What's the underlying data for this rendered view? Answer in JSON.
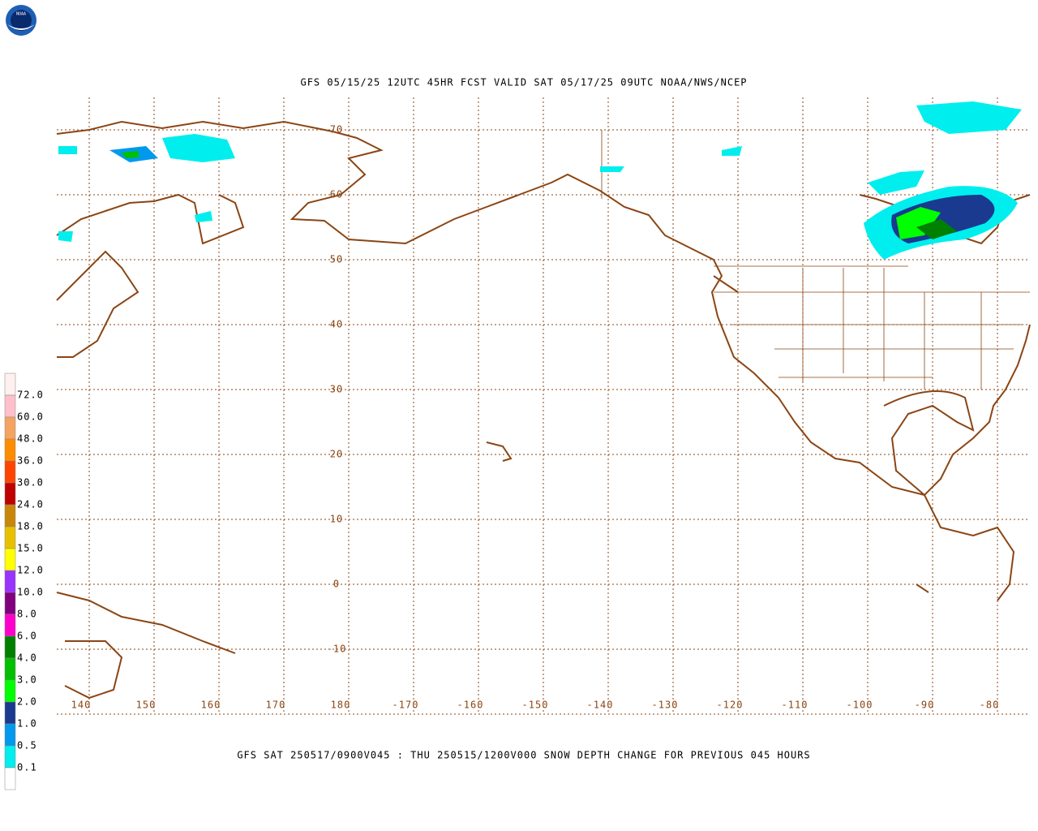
{
  "header": {
    "title": "GFS 05/15/25 12UTC 45HR FCST VALID SAT 05/17/25 09UTC NOAA/NWS/NCEP",
    "logo": "NOAA"
  },
  "map": {
    "lat_labels": [
      "70",
      "60",
      "50",
      "40",
      "30",
      "20",
      "10",
      "0",
      "-10"
    ],
    "lon_labels": [
      "140",
      "150",
      "160",
      "170",
      "180",
      "-170",
      "-160",
      "-150",
      "-140",
      "-130",
      "-120",
      "-110",
      "-100",
      "-90",
      "-80"
    ]
  },
  "legend": {
    "labels": [
      "72.0",
      "60.0",
      "48.0",
      "36.0",
      "30.0",
      "24.0",
      "18.0",
      "15.0",
      "12.0",
      "10.0",
      "8.0",
      "6.0",
      "4.0",
      "3.0",
      "2.0",
      "1.0",
      "0.5",
      "0.1"
    ],
    "colors": [
      "#fff0f0",
      "#ffc0cb",
      "#f4a460",
      "#ff8c00",
      "#ff4500",
      "#c00000",
      "#c8860b",
      "#e8c000",
      "#ffff00",
      "#9933ff",
      "#800080",
      "#ff00cc",
      "#008000",
      "#00c000",
      "#00ff00",
      "#1a3a8f",
      "#0099ee",
      "#00eeee",
      "#ffffff"
    ]
  },
  "footer": {
    "caption": "GFS SAT 250517/0900V045 : THU 250515/1200V000 SNOW DEPTH CHANGE FOR PREVIOUS 045 HOURS"
  }
}
